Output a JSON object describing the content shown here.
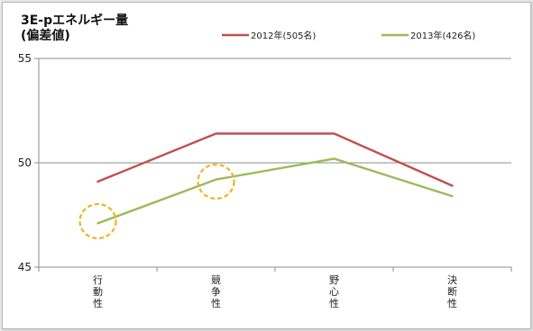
{
  "chart_data": {
    "type": "line",
    "title_lines": [
      "3E-pエネルギー量",
      "(偏差値)"
    ],
    "xlabel": "",
    "ylabel": "",
    "ylim": [
      45,
      55
    ],
    "yticks": [
      "45",
      "50",
      "55"
    ],
    "categories": [
      "行動性",
      "競争性",
      "野心性",
      "決断性"
    ],
    "grid": true,
    "legend_position": "top",
    "series": [
      {
        "name": "2012年(505名)",
        "color": "#c0504d",
        "values": [
          49.1,
          51.4,
          51.4,
          48.9
        ]
      },
      {
        "name": "2013年(426名)",
        "color": "#9bbb59",
        "values": [
          47.1,
          49.2,
          50.2,
          48.4
        ]
      }
    ],
    "annotations": [
      {
        "shape": "dashed-circle",
        "color": "#f0b323",
        "category": "行動性",
        "value": 47.2
      },
      {
        "shape": "dashed-circle",
        "color": "#f0b323",
        "category": "競争性",
        "value": 49.1
      }
    ]
  }
}
